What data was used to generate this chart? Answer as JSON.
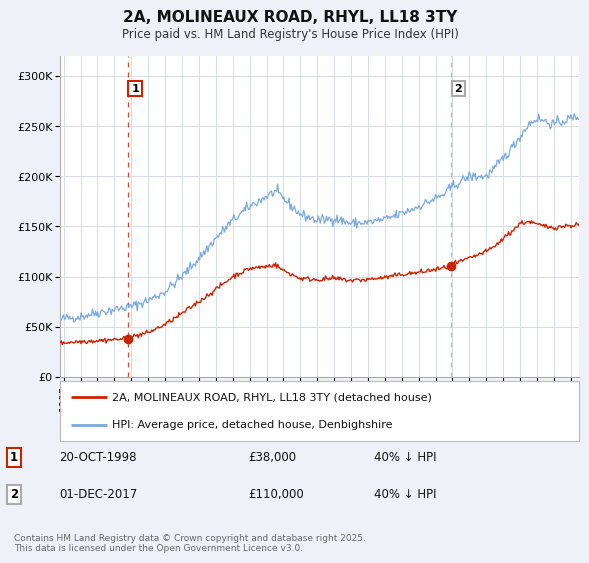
{
  "title": "2A, MOLINEAUX ROAD, RHYL, LL18 3TY",
  "subtitle": "Price paid vs. HM Land Registry's House Price Index (HPI)",
  "bg_color": "#eef2f8",
  "plot_bg_color": "#ffffff",
  "red_color": "#cc2200",
  "blue_color": "#7aaadd",
  "grid_color": "#d0d8e8",
  "marker1_date": 1998.8,
  "marker1_value": 38000,
  "marker1_hpi": "40% ↓ HPI",
  "marker1_date_str": "20-OCT-1998",
  "marker1_price_str": "£38,000",
  "marker2_date": 2017.92,
  "marker2_value": 110000,
  "marker2_hpi": "40% ↓ HPI",
  "marker2_date_str": "01-DEC-2017",
  "marker2_price_str": "£110,000",
  "ylim_min": 0,
  "ylim_max": 320000,
  "xlim_min": 1994.8,
  "xlim_max": 2025.5,
  "ytick_vals": [
    0,
    50000,
    100000,
    150000,
    200000,
    250000,
    300000
  ],
  "ytick_labels": [
    "£0",
    "£50K",
    "£100K",
    "£150K",
    "£200K",
    "£250K",
    "£300K"
  ],
  "xtick_vals": [
    1995,
    1996,
    1997,
    1998,
    1999,
    2000,
    2001,
    2002,
    2003,
    2004,
    2005,
    2006,
    2007,
    2008,
    2009,
    2010,
    2011,
    2012,
    2013,
    2014,
    2015,
    2016,
    2017,
    2018,
    2019,
    2020,
    2021,
    2022,
    2023,
    2024,
    2025
  ],
  "legend_red_label": "2A, MOLINEAUX ROAD, RHYL, LL18 3TY (detached house)",
  "legend_blue_label": "HPI: Average price, detached house, Denbighshire",
  "footnote_line1": "Contains HM Land Registry data © Crown copyright and database right 2025.",
  "footnote_line2": "This data is licensed under the Open Government Licence v3.0."
}
